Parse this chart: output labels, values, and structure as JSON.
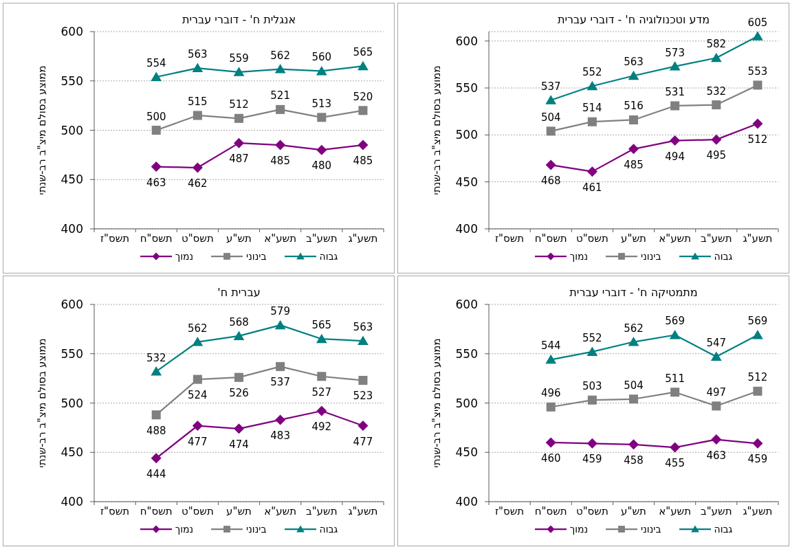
{
  "chart_data": [
    {
      "type": "line",
      "title": "אנגלית ח' - דוברי עברית",
      "ylabel": "ממוצע בסולם מיצ\"ב רב-שנתי",
      "categories": [
        "תשס\"ז",
        "תשס\"ח",
        "תשס\"ט",
        "תש\"ע",
        "תשע\"א",
        "תשע\"ב",
        "תשע\"ג"
      ],
      "series": [
        {
          "name": "נמוך",
          "color": "#800080",
          "marker": "diamond",
          "values": [
            null,
            463,
            462,
            487,
            485,
            480,
            485
          ]
        },
        {
          "name": "בינוני",
          "color": "#808080",
          "marker": "square",
          "values": [
            null,
            500,
            515,
            512,
            521,
            513,
            520
          ]
        },
        {
          "name": "גבוה",
          "color": "#008080",
          "marker": "triangle",
          "values": [
            null,
            554,
            563,
            559,
            562,
            560,
            565
          ]
        }
      ],
      "ylim": [
        400,
        600
      ],
      "yticks": [
        400,
        450,
        500,
        550,
        600
      ],
      "grid": "y",
      "legend": "bottom",
      "data_labels": true
    },
    {
      "type": "line",
      "title": "מדע וטכנולוגיה ח' - דוברי עברית",
      "ylabel": "ממוצע בסולם מיצ\"ב רב-שנתי",
      "categories": [
        "תשס\"ז",
        "תשס\"ח",
        "תשס\"ט",
        "תש\"ע",
        "תשע\"א",
        "תשע\"ב",
        "תשע\"ג"
      ],
      "series": [
        {
          "name": "נמוך",
          "color": "#800080",
          "marker": "diamond",
          "values": [
            null,
            468,
            461,
            485,
            494,
            495,
            512
          ]
        },
        {
          "name": "בינוני",
          "color": "#808080",
          "marker": "square",
          "values": [
            null,
            504,
            514,
            516,
            531,
            532,
            553
          ]
        },
        {
          "name": "גבוה",
          "color": "#008080",
          "marker": "triangle",
          "values": [
            null,
            537,
            552,
            563,
            573,
            582,
            605
          ]
        }
      ],
      "ylim": [
        400,
        610
      ],
      "yticks": [
        400,
        450,
        500,
        550,
        600
      ],
      "grid": "y",
      "legend": "bottom",
      "data_labels": true
    },
    {
      "type": "line",
      "title": "עברית ח'",
      "ylabel": "ממוצע בסולם מיצ\"ב רב-שנתי",
      "categories": [
        "תשס\"ז",
        "תשס\"ח",
        "תשס\"ט",
        "תש\"ע",
        "תשע\"א",
        "תשע\"ב",
        "תשע\"ג"
      ],
      "series": [
        {
          "name": "נמוך",
          "color": "#800080",
          "marker": "diamond",
          "values": [
            null,
            444,
            477,
            474,
            483,
            492,
            477
          ]
        },
        {
          "name": "בינוני",
          "color": "#808080",
          "marker": "square",
          "values": [
            null,
            488,
            524,
            526,
            537,
            527,
            523
          ]
        },
        {
          "name": "גבוה",
          "color": "#008080",
          "marker": "triangle",
          "values": [
            null,
            532,
            562,
            568,
            579,
            565,
            563
          ]
        }
      ],
      "ylim": [
        400,
        600
      ],
      "yticks": [
        400,
        450,
        500,
        550,
        600
      ],
      "grid": "y",
      "legend": "bottom",
      "data_labels": true
    },
    {
      "type": "line",
      "title": "מתמטיקה ח' - דוברי עברית",
      "ylabel": "ממוצע בסולם מיצ\"ב רב-שנתי",
      "categories": [
        "תשס\"ז",
        "תשס\"ח",
        "תשס\"ט",
        "תש\"ע",
        "תשע\"א",
        "תשע\"ב",
        "תשע\"ג"
      ],
      "series": [
        {
          "name": "נמוך",
          "color": "#800080",
          "marker": "diamond",
          "values": [
            null,
            460,
            459,
            458,
            455,
            463,
            459
          ]
        },
        {
          "name": "בינוני",
          "color": "#808080",
          "marker": "square",
          "values": [
            null,
            496,
            503,
            504,
            511,
            497,
            512
          ]
        },
        {
          "name": "גבוה",
          "color": "#008080",
          "marker": "triangle",
          "values": [
            null,
            544,
            552,
            562,
            569,
            547,
            569
          ]
        }
      ],
      "ylim": [
        400,
        600
      ],
      "yticks": [
        400,
        450,
        500,
        550,
        600
      ],
      "grid": "y",
      "legend": "bottom",
      "data_labels": true
    }
  ]
}
